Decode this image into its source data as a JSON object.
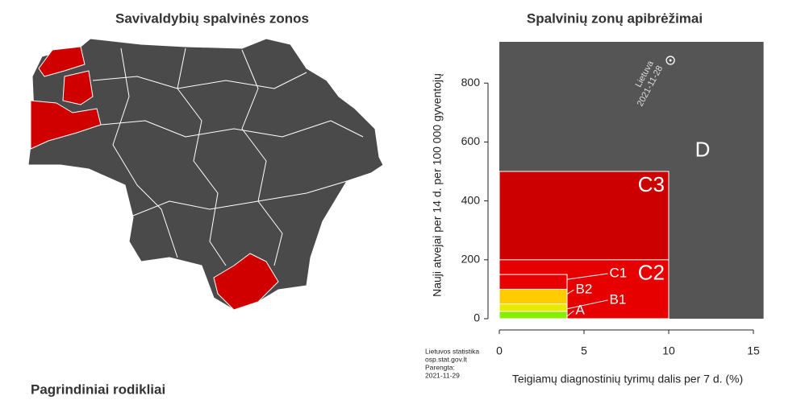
{
  "header": {
    "left_title": "Savivaldybių spalvinės zonos",
    "right_title": "Spalvinių zonų apibrėžimai",
    "section_title": "Pagrindiniai rodikliai"
  },
  "chart_data": {
    "type": "zones",
    "xlabel": "Teigiamų diagnostinių tyrimų dalis per 7 d. (%)",
    "ylabel": "Nauji atvejai per 14 d. per 100 000 gyventojų",
    "xlim": [
      0,
      15.6
    ],
    "ylim": [
      0,
      940
    ],
    "xticks": [
      0,
      5,
      10,
      15
    ],
    "yticks": [
      0,
      200,
      400,
      600,
      800
    ],
    "zones": [
      {
        "name": "D",
        "color": "#555555"
      },
      {
        "name": "C3",
        "x_max": 10,
        "y_max": 500,
        "color": "#cc0000"
      },
      {
        "name": "C2",
        "x_max": 10,
        "y_max": 200,
        "color": "#e60000"
      },
      {
        "name": "C1",
        "x_max": 4,
        "y_max": 150,
        "color": "#e60000"
      },
      {
        "name": "B2",
        "x_max": 4,
        "y_max": 100,
        "color": "#ffcc00"
      },
      {
        "name": "B1",
        "x_max": 4,
        "y_max": 50,
        "color": "#e8e800"
      },
      {
        "name": "A",
        "x_max": 4,
        "y_max": 25,
        "color": "#88ee00"
      }
    ],
    "point": {
      "label": "Lietuva",
      "date": "2021-11-28",
      "x": 10.1,
      "y": 877
    },
    "source": [
      "Lietuvos statistika",
      "osp.stat.gov.lt",
      "Parengta:",
      "2021-11-29"
    ]
  }
}
